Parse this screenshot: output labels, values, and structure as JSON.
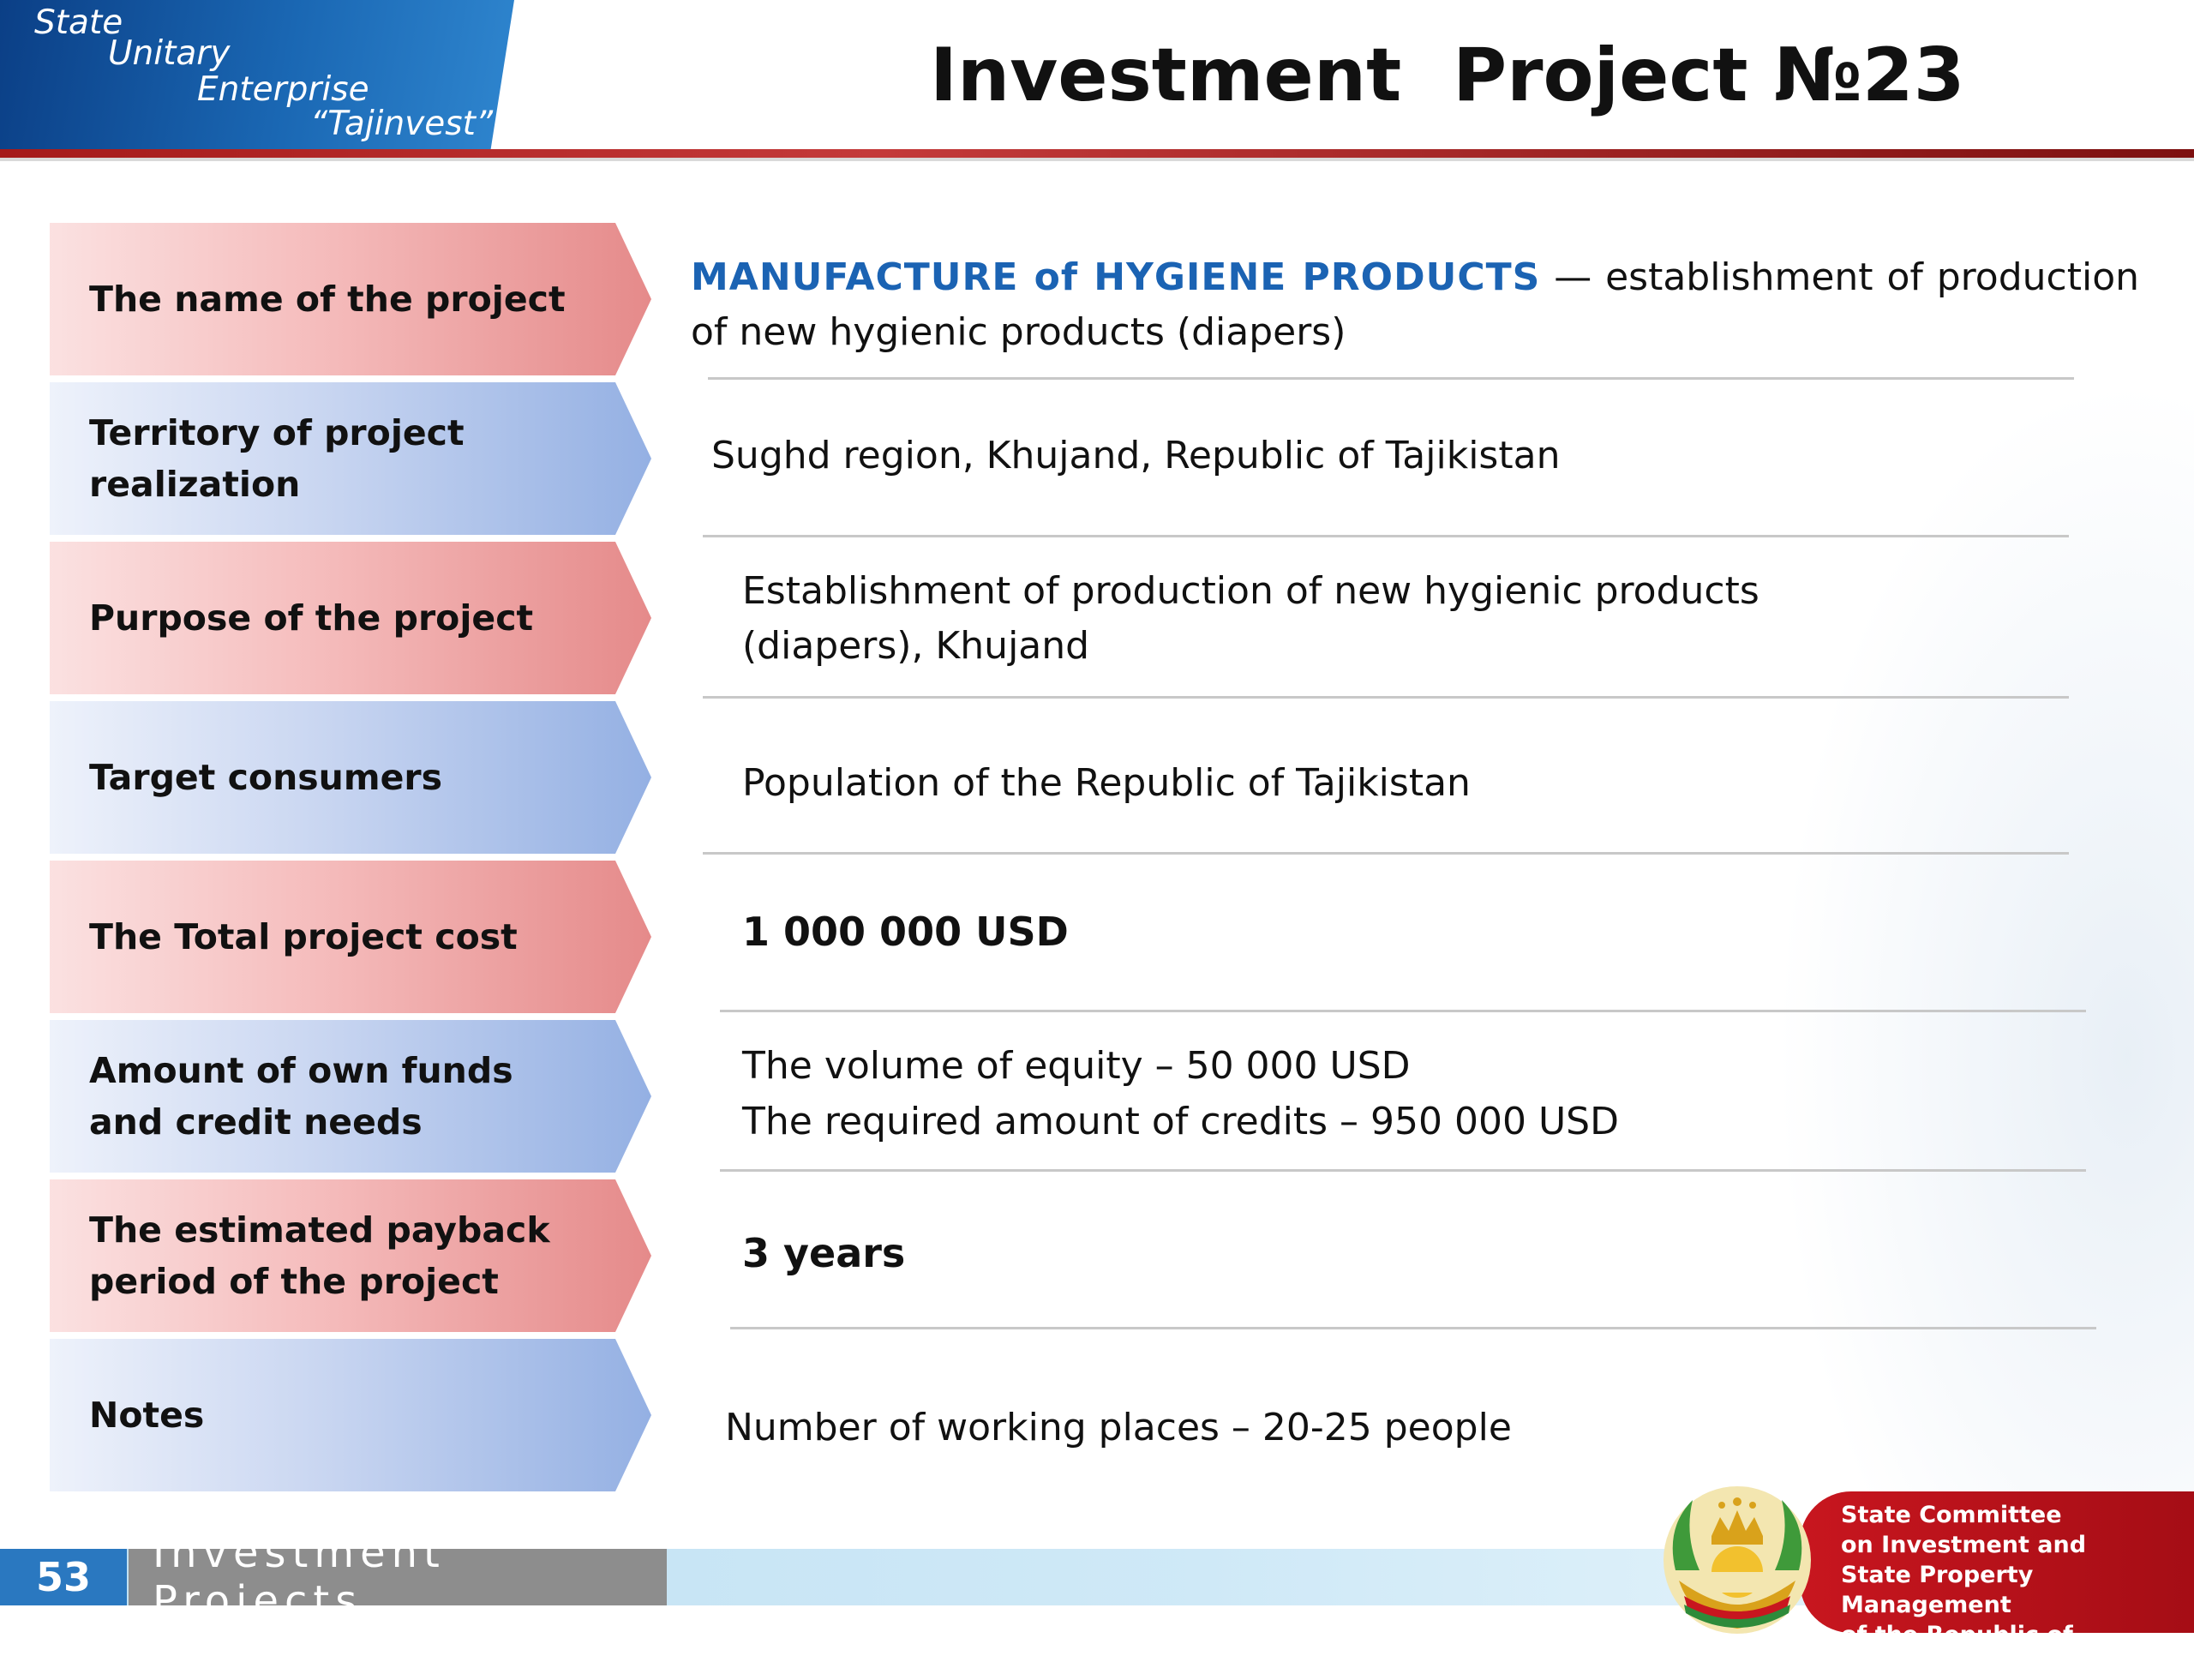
{
  "logo": {
    "lines": [
      "State",
      "Unitary",
      "Enterprise",
      "“Tajinvest”"
    ]
  },
  "title": "Investment  Project №23",
  "rows": [
    {
      "label": "The name of the project",
      "color": "red",
      "value_highlight": "MANUFACTURE of HYGIENE PRODUCTS",
      "value": " — establishment of production of new hygienic products (diapers)"
    },
    {
      "label": "Territory of project\nrealization",
      "color": "blue",
      "value": "Sughd region, Khujand, Republic of Tajikistan"
    },
    {
      "label": "Purpose of the project",
      "color": "red",
      "value": "Establishment of production of new hygienic products\n(diapers), Khujand"
    },
    {
      "label": "Target consumers",
      "color": "blue",
      "value": "Population of the Republic of Tajikistan"
    },
    {
      "label": "The Total project cost",
      "color": "red",
      "value": "1 000 000 USD"
    },
    {
      "label": "Amount of own funds\nand credit needs",
      "color": "blue",
      "value_lines": [
        "The volume of equity – 50 000 USD",
        "The required amount of credits – 950 000 USD"
      ]
    },
    {
      "label": "The estimated payback\nperiod of the project",
      "color": "red",
      "value": "3 years"
    },
    {
      "label": "Notes",
      "color": "blue",
      "value": "Number of working places –  20-25 people"
    }
  ],
  "footer": {
    "page_number": "53",
    "section_title": "Investment Projects",
    "committee": "State Committee\non Investment and\nState Property Management\nof the Republic of Tajikistan"
  },
  "colors": {
    "accent_blue": "#1b63b3",
    "header_red": "#a51a1a",
    "label_red": "#e58a8a",
    "label_blue": "#94b0e3"
  }
}
